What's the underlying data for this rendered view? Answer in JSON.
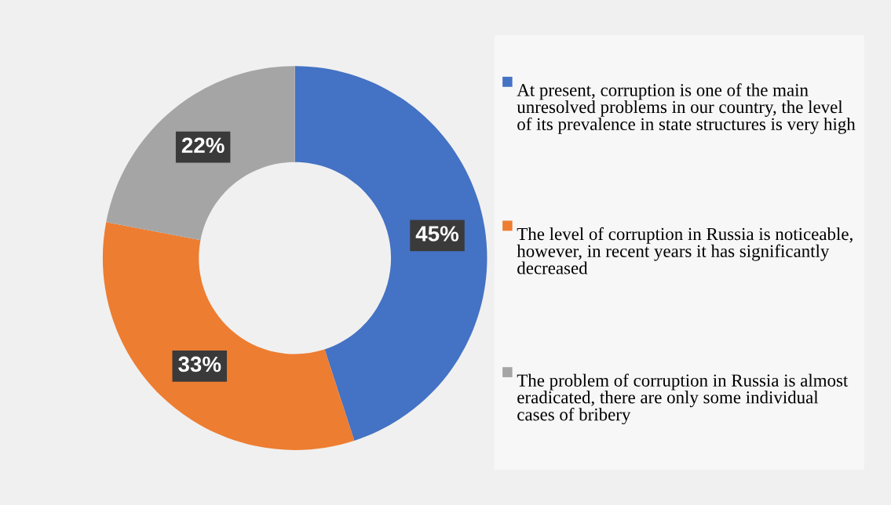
{
  "chart_data": {
    "type": "donut",
    "categories": [
      "At present, corruption is one of the main unresolved problems in our country, the level of its prevalence in state structures is very high",
      "The level of corruption in Russia is noticeable, however, in recent years it has significantly decreased",
      "The problem of corruption in Russia is almost eradicated, there are only some individual cases of bribery"
    ],
    "values": [
      45,
      33,
      22
    ],
    "colors": [
      "#4472c4",
      "#ed7d31",
      "#a5a5a5"
    ],
    "value_labels": [
      "45%",
      "33%",
      "22%"
    ],
    "legend": "right"
  }
}
